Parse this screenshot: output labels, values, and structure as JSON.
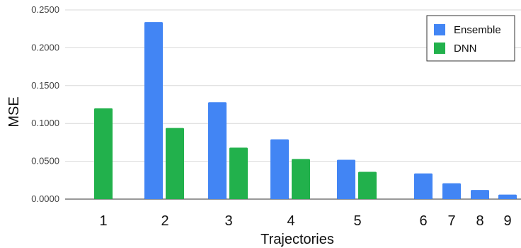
{
  "chart_data": {
    "type": "bar",
    "xlabel": "Trajectories",
    "ylabel": "MSE",
    "ylim": [
      0,
      0.25
    ],
    "yticks": [
      "0.0000",
      "0.0500",
      "0.1000",
      "0.1500",
      "0.2000",
      "0.2500"
    ],
    "grid": true,
    "legend_position": "top-right",
    "categories": [
      "1",
      "2",
      "3",
      "4",
      "5",
      "6",
      "7",
      "8",
      "9"
    ],
    "series": [
      {
        "name": "Ensemble",
        "color": "#4285f4",
        "values": [
          null,
          0.234,
          0.128,
          0.079,
          0.052,
          0.034,
          0.021,
          0.012,
          0.006
        ]
      },
      {
        "name": "DNN",
        "color": "#22b14c",
        "values": [
          0.12,
          0.094,
          0.068,
          0.053,
          0.036,
          null,
          null,
          null,
          null
        ]
      }
    ]
  }
}
